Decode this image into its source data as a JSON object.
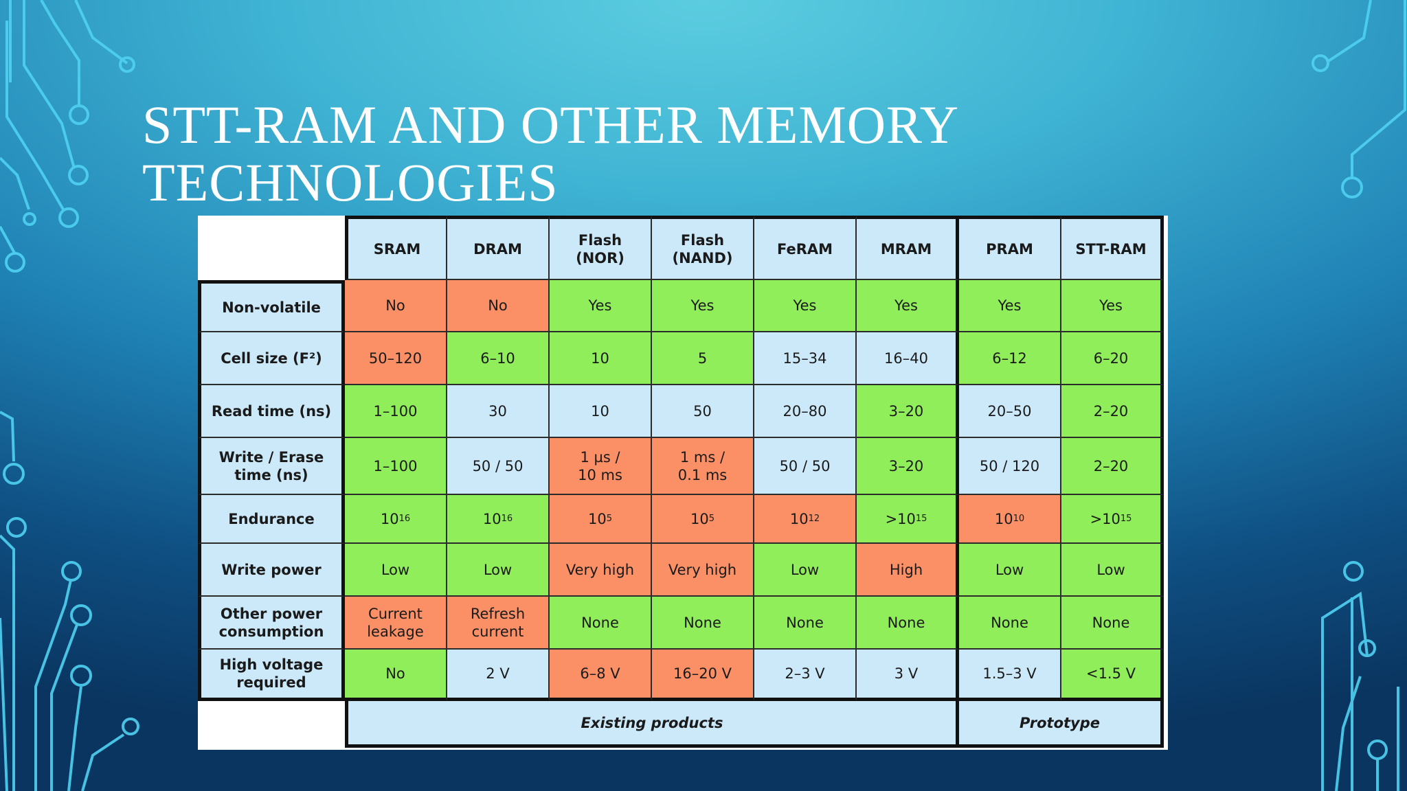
{
  "slide": {
    "title_line1": "STT-RAM AND OTHER MEMORY",
    "title_line2": "TECHNOLOGIES"
  },
  "table": {
    "columns": [
      "SRAM",
      "DRAM",
      "Flash\n(NOR)",
      "Flash\n(NAND)",
      "FeRAM",
      "MRAM",
      "PRAM",
      "STT-RAM"
    ],
    "rows": [
      {
        "label": "Non-volatile",
        "cells": [
          "No",
          "No",
          "Yes",
          "Yes",
          "Yes",
          "Yes",
          "Yes",
          "Yes"
        ],
        "colors": [
          "orange",
          "orange",
          "green",
          "green",
          "green",
          "green",
          "green",
          "green"
        ]
      },
      {
        "label": "Cell size (F²)",
        "cells": [
          "50–120",
          "6–10",
          "10",
          "5",
          "15–34",
          "16–40",
          "6–12",
          "6–20"
        ],
        "colors": [
          "orange",
          "green",
          "green",
          "green",
          "blue",
          "blue",
          "green",
          "green"
        ]
      },
      {
        "label": "Read time (ns)",
        "cells": [
          "1–100",
          "30",
          "10",
          "50",
          "20–80",
          "3–20",
          "20–50",
          "2–20"
        ],
        "colors": [
          "green",
          "blue",
          "blue",
          "blue",
          "blue",
          "green",
          "blue",
          "green"
        ]
      },
      {
        "label": "Write / Erase\ntime (ns)",
        "cells": [
          "1–100",
          "50 / 50",
          "1 µs /\n10 ms",
          "1 ms /\n0.1 ms",
          "50 / 50",
          "3–20",
          "50 / 120",
          "2–20"
        ],
        "colors": [
          "green",
          "blue",
          "orange",
          "orange",
          "blue",
          "green",
          "blue",
          "green"
        ]
      },
      {
        "label": "Endurance",
        "cells": [
          "10^16",
          "10^16",
          "10^5",
          "10^5",
          "10^12",
          ">10^15",
          "10^10",
          ">10^15"
        ],
        "colors": [
          "green",
          "green",
          "orange",
          "orange",
          "orange",
          "green",
          "orange",
          "green"
        ]
      },
      {
        "label": "Write power",
        "cells": [
          "Low",
          "Low",
          "Very high",
          "Very high",
          "Low",
          "High",
          "Low",
          "Low"
        ],
        "colors": [
          "green",
          "green",
          "orange",
          "orange",
          "green",
          "orange",
          "green",
          "green"
        ]
      },
      {
        "label": "Other power\nconsumption",
        "cells": [
          "Current\nleakage",
          "Refresh\ncurrent",
          "None",
          "None",
          "None",
          "None",
          "None",
          "None"
        ],
        "colors": [
          "orange",
          "orange",
          "green",
          "green",
          "green",
          "green",
          "green",
          "green"
        ]
      },
      {
        "label": "High voltage\nrequired",
        "cells": [
          "No",
          "2 V",
          "6–8 V",
          "16–20 V",
          "2–3 V",
          "3 V",
          "1.5–3 V",
          "<1.5 V"
        ],
        "colors": [
          "green",
          "blue",
          "orange",
          "orange",
          "blue",
          "blue",
          "blue",
          "green"
        ]
      }
    ],
    "footer": {
      "existing": "Existing products",
      "prototype": "Prototype"
    }
  },
  "colors": {
    "green": "#8fee59",
    "orange": "#fb9066",
    "blue": "#cce9fa"
  }
}
